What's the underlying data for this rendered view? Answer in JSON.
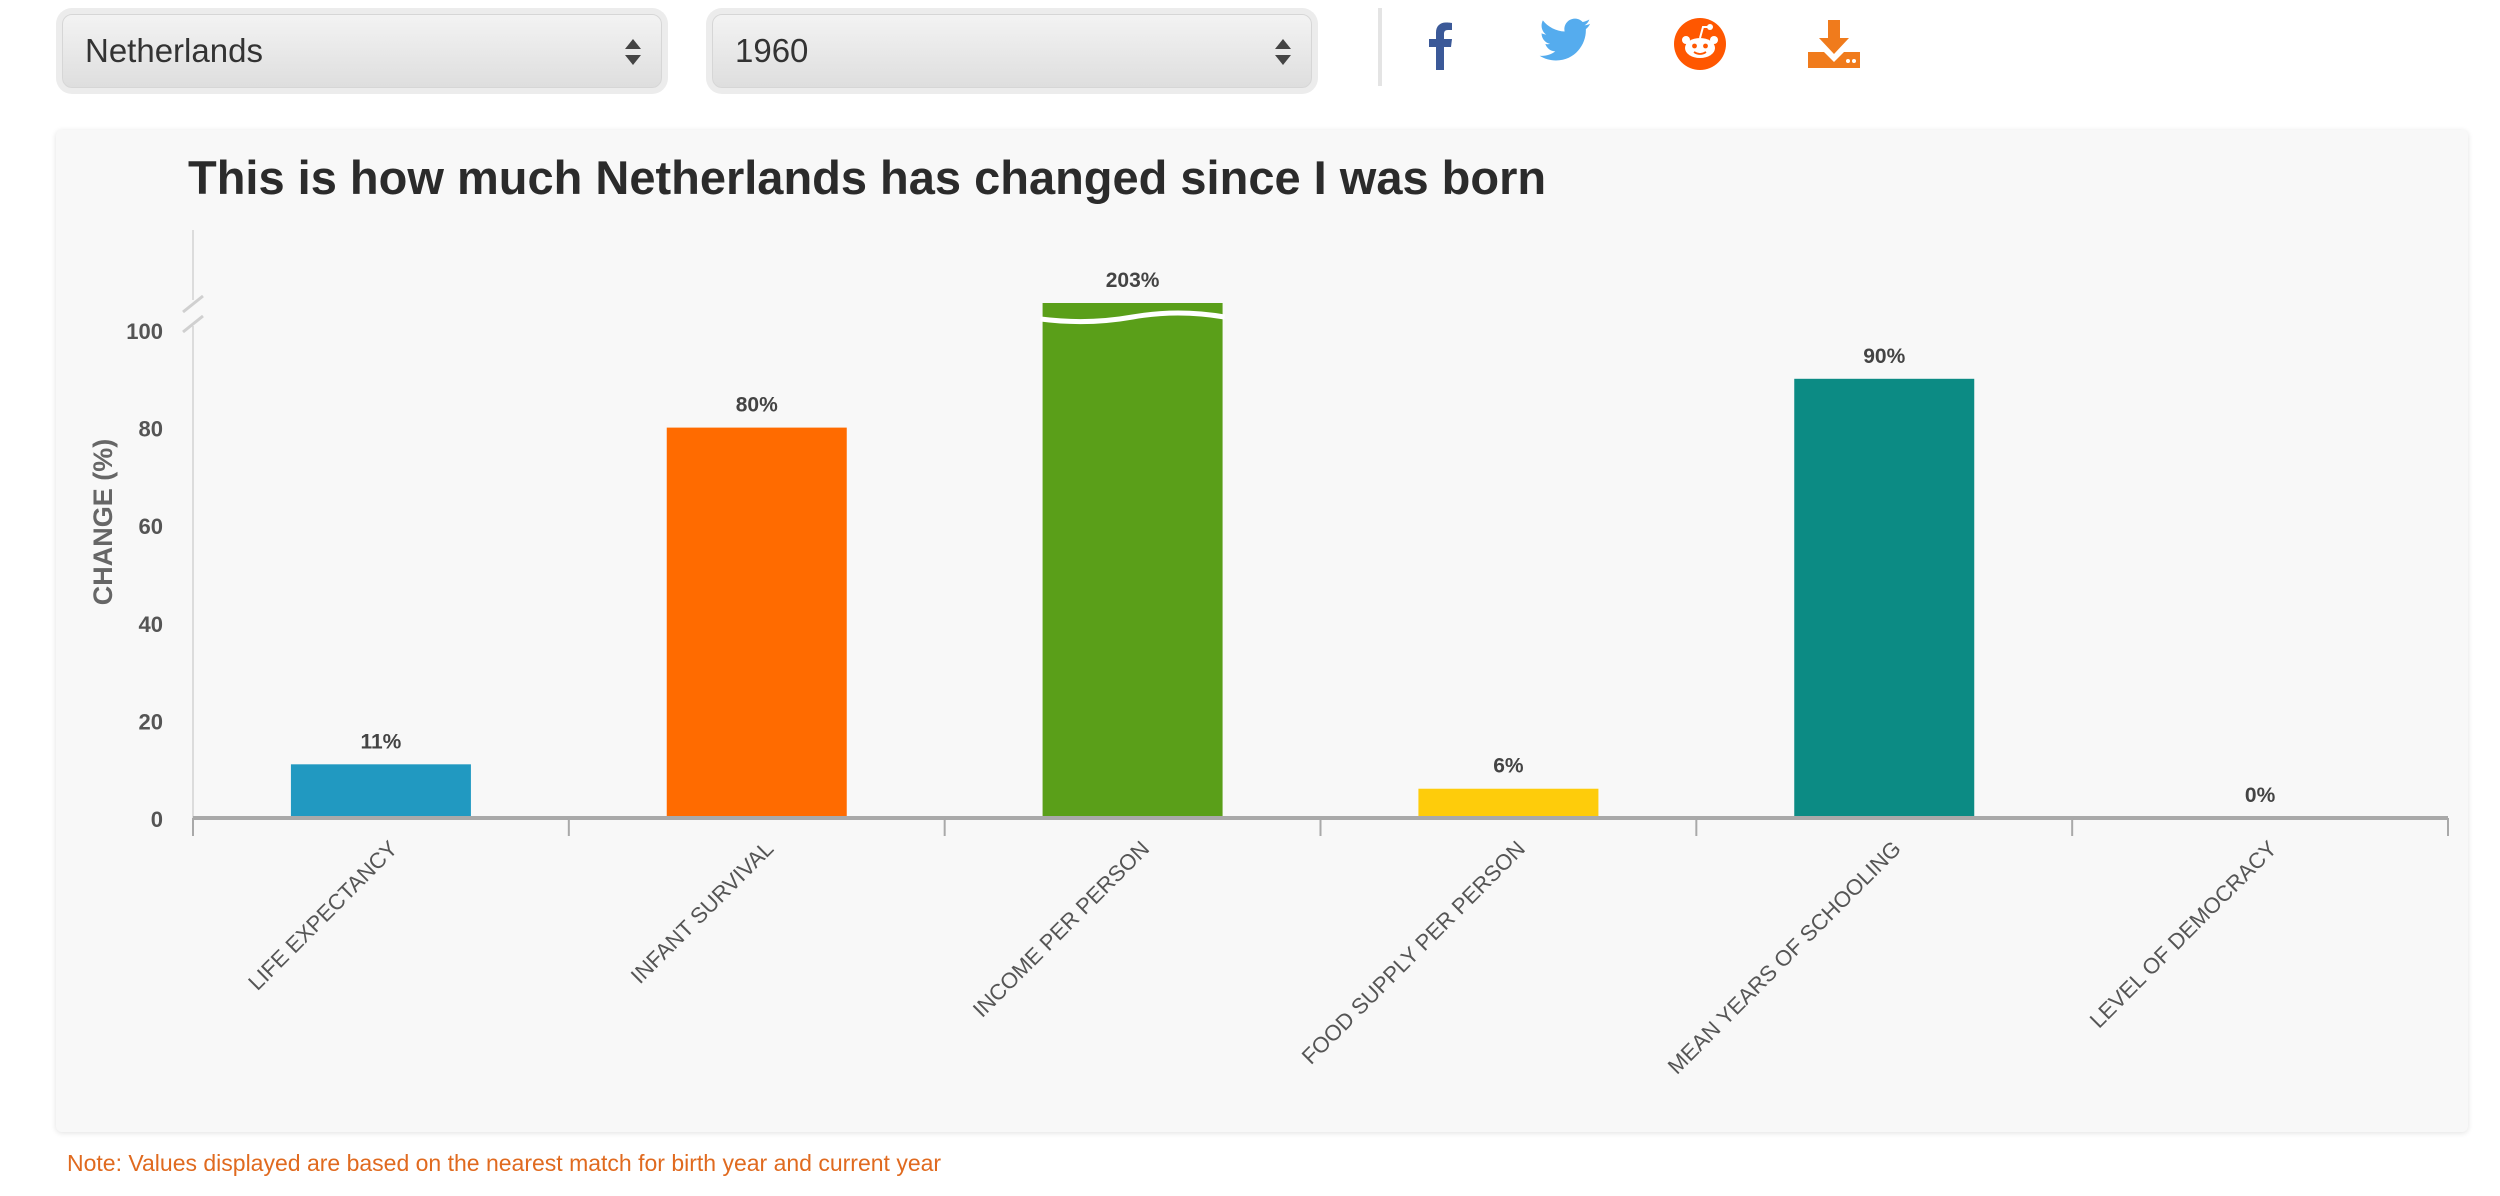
{
  "controls": {
    "country_select": {
      "value": "Netherlands"
    },
    "year_select": {
      "value": "1960"
    }
  },
  "share": {
    "icons": [
      "facebook-icon",
      "twitter-icon",
      "reddit-icon",
      "download-icon"
    ],
    "colors": {
      "facebook": "#3b5998",
      "twitter": "#55acee",
      "reddit": "#ff5700",
      "download": "#f07b1c"
    }
  },
  "note": "Note: Values displayed are based on the nearest match for birth year and current year",
  "chart_data": {
    "type": "bar",
    "title": "This is how much Netherlands has changed since I was born",
    "ylabel": "CHANGE (%)",
    "xlabel": "",
    "ylim": [
      0,
      100
    ],
    "y_ticks": [
      "0",
      "20",
      "40",
      "60",
      "80",
      "100"
    ],
    "axis_break": true,
    "grid": false,
    "legend": "none",
    "categories": [
      "LIFE EXPECTANCY",
      "INFANT SURVIVAL",
      "INCOME PER PERSON",
      "FOOD SUPPLY PER PERSON",
      "MEAN YEARS OF SCHOOLING",
      "LEVEL OF DEMOCRACY"
    ],
    "values": [
      11,
      80,
      203,
      6,
      90,
      0
    ],
    "value_labels": [
      "11%",
      "80%",
      "203%",
      "6%",
      "90%",
      "0%"
    ],
    "colors": [
      "#2199c1",
      "#ff6b00",
      "#5a9f19",
      "#fecc0b",
      "#0c8b84",
      "#7c7c7c"
    ]
  }
}
